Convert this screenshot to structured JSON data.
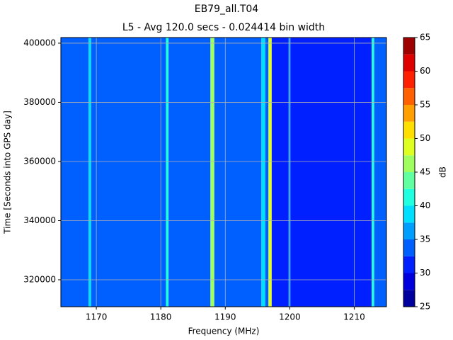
{
  "chart_data": {
    "type": "heatmap",
    "title": "EB79_all.T04",
    "subtitle": "L5 - Avg 120.0 secs - 0.024414 bin width",
    "x_label": "Frequency (MHz)",
    "y_label": "Time [Seconds into GPS day]",
    "colorbar_label": "dB",
    "colormap": "jet",
    "n_levels": 16,
    "x_edges": [
      1164.5,
      1168.8,
      1169.2,
      1180.8,
      1181.2,
      1187.7,
      1188.3,
      1195.6,
      1196.2,
      1196.7,
      1197.2,
      1199.8,
      1200.1,
      1212.7,
      1213.1,
      1215
    ],
    "values": [
      33.75,
      38,
      33.75,
      40,
      33.75,
      47,
      33.75,
      38,
      33.75,
      49,
      30,
      36,
      31,
      42,
      33.75
    ],
    "xlim": [
      1164.5,
      1215
    ],
    "xticks": [
      1170,
      1180,
      1190,
      1200,
      1210
    ],
    "ylim": [
      310900,
      401900
    ],
    "yticks": [
      320000,
      340000,
      360000,
      380000,
      400000
    ],
    "clim": [
      25,
      65
    ],
    "cticks": [
      25,
      30,
      35,
      40,
      45,
      50,
      55,
      60,
      65
    ],
    "grid": true
  }
}
